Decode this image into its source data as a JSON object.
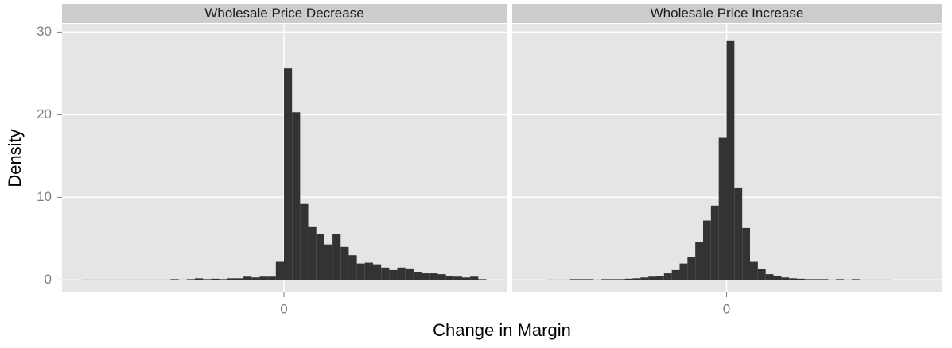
{
  "chart_data": {
    "type": "histogram",
    "x_label": "Change in Margin",
    "y_label": "Density",
    "xlim": [
      -2.74,
      2.75
    ],
    "xticks": [
      0
    ],
    "ylim": [
      -1.5,
      31
    ],
    "yticks": [
      0,
      10,
      20,
      30
    ],
    "grid": true,
    "color": "#333333",
    "bins": [
      -2.5,
      -2.4,
      -2.3,
      -2.2,
      -2.1,
      -2.0,
      -1.9,
      -1.8,
      -1.7,
      -1.6,
      -1.5,
      -1.4,
      -1.3,
      -1.2,
      -1.1,
      -1.0,
      -0.9,
      -0.8,
      -0.7,
      -0.6,
      -0.5,
      -0.4,
      -0.3,
      -0.2,
      -0.1,
      0,
      0.1,
      0.2,
      0.3,
      0.4,
      0.5,
      0.6,
      0.7,
      0.8,
      0.9,
      1.0,
      1.1,
      1.2,
      1.3,
      1.4,
      1.5,
      1.6,
      1.7,
      1.8,
      1.9,
      2.0,
      2.1,
      2.2,
      2.3,
      2.4,
      2.5
    ],
    "panels": [
      {
        "title": "Wholesale Price Decrease",
        "values": [
          0.05,
          0.05,
          0.05,
          0.05,
          0.05,
          0.05,
          0.05,
          0.05,
          0.05,
          0.05,
          0.05,
          0.1,
          0.05,
          0.1,
          0.2,
          0.1,
          0.15,
          0.1,
          0.2,
          0.2,
          0.4,
          0.3,
          0.4,
          0.4,
          2.2,
          25.6,
          20.3,
          9.2,
          6.4,
          5.6,
          4.3,
          5.6,
          4.0,
          3.0,
          2.0,
          2.1,
          1.9,
          1.5,
          1.2,
          1.5,
          1.4,
          1.0,
          0.8,
          0.8,
          0.7,
          0.5,
          0.4,
          0.3,
          0.4,
          0.1
        ]
      },
      {
        "title": "Wholesale Price Increase",
        "values": [
          0.02,
          0.02,
          0.05,
          0.05,
          0.05,
          0.1,
          0.1,
          0.1,
          0.05,
          0.1,
          0.1,
          0.1,
          0.15,
          0.2,
          0.3,
          0.4,
          0.5,
          0.8,
          1.2,
          2.0,
          2.8,
          4.6,
          7.2,
          9.0,
          17.2,
          29.0,
          11.2,
          6.3,
          2.2,
          1.3,
          0.7,
          0.5,
          0.3,
          0.2,
          0.15,
          0.1,
          0.1,
          0.1,
          0.05,
          0.1,
          0.05,
          0.1,
          0.05,
          0.05,
          0.05,
          0.05,
          0.02,
          0.02,
          0.02,
          0.02
        ]
      }
    ]
  }
}
